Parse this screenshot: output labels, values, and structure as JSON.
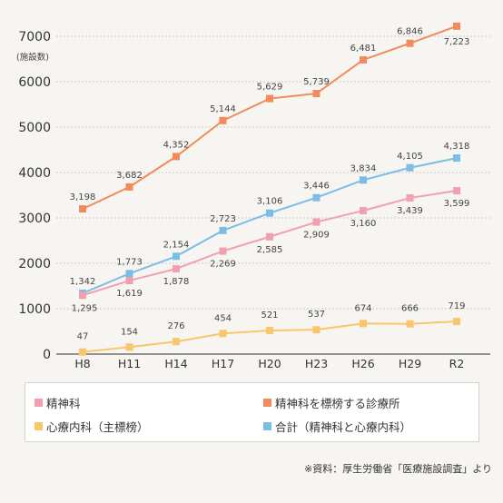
{
  "chart_data": {
    "type": "line",
    "y_unit": "(施設数)",
    "x": [
      "H8",
      "H11",
      "H14",
      "H17",
      "H20",
      "H23",
      "H26",
      "H29",
      "R2"
    ],
    "ylim": [
      0,
      7000
    ],
    "yticks": [
      "0",
      "1000",
      "2000",
      "3000",
      "4000",
      "5000",
      "6000",
      "7000"
    ],
    "grid": true,
    "series": [
      {
        "name": "精神科を標榜する診療所",
        "color": "#f28b5c",
        "values": [
          3198,
          3682,
          4352,
          5144,
          5629,
          5739,
          6481,
          6846,
          7223
        ],
        "labels": [
          "3,198",
          "3,682",
          "4,352",
          "5,144",
          "5,629",
          "5,739",
          "6,481",
          "6,846",
          "7,223"
        ]
      },
      {
        "name": "合計（精神科と心療内科）",
        "color": "#7cbde6",
        "values": [
          1342,
          1773,
          2154,
          2723,
          3106,
          3446,
          3834,
          4105,
          4318
        ],
        "labels": [
          "1,342",
          "1,773",
          "2,154",
          "2,723",
          "3,106",
          "3,446",
          "3,834",
          "4,105",
          "4,318"
        ]
      },
      {
        "name": "精神科",
        "color": "#f0a0b0",
        "values": [
          1295,
          1619,
          1878,
          2269,
          2585,
          2909,
          3160,
          3439,
          3599
        ],
        "labels": [
          "1,295",
          "1,619",
          "1,878",
          "2,269",
          "2,585",
          "2,909",
          "3,160",
          "3,439",
          "3,599"
        ]
      },
      {
        "name": "心療内科（主標榜）",
        "color": "#f8c66b",
        "values": [
          47,
          154,
          276,
          454,
          521,
          537,
          674,
          666,
          719
        ],
        "labels": [
          "47",
          "154",
          "276",
          "454",
          "521",
          "537",
          "674",
          "666",
          "719"
        ]
      }
    ]
  },
  "legend": {
    "psych": "精神科",
    "clinic": "精神科を標榜する診療所",
    "psychosomatic": "心療内科（主標榜）",
    "total": "合計（精神科と心療内科）"
  },
  "source": "※資料：厚生労働省「医療施設調査」より"
}
